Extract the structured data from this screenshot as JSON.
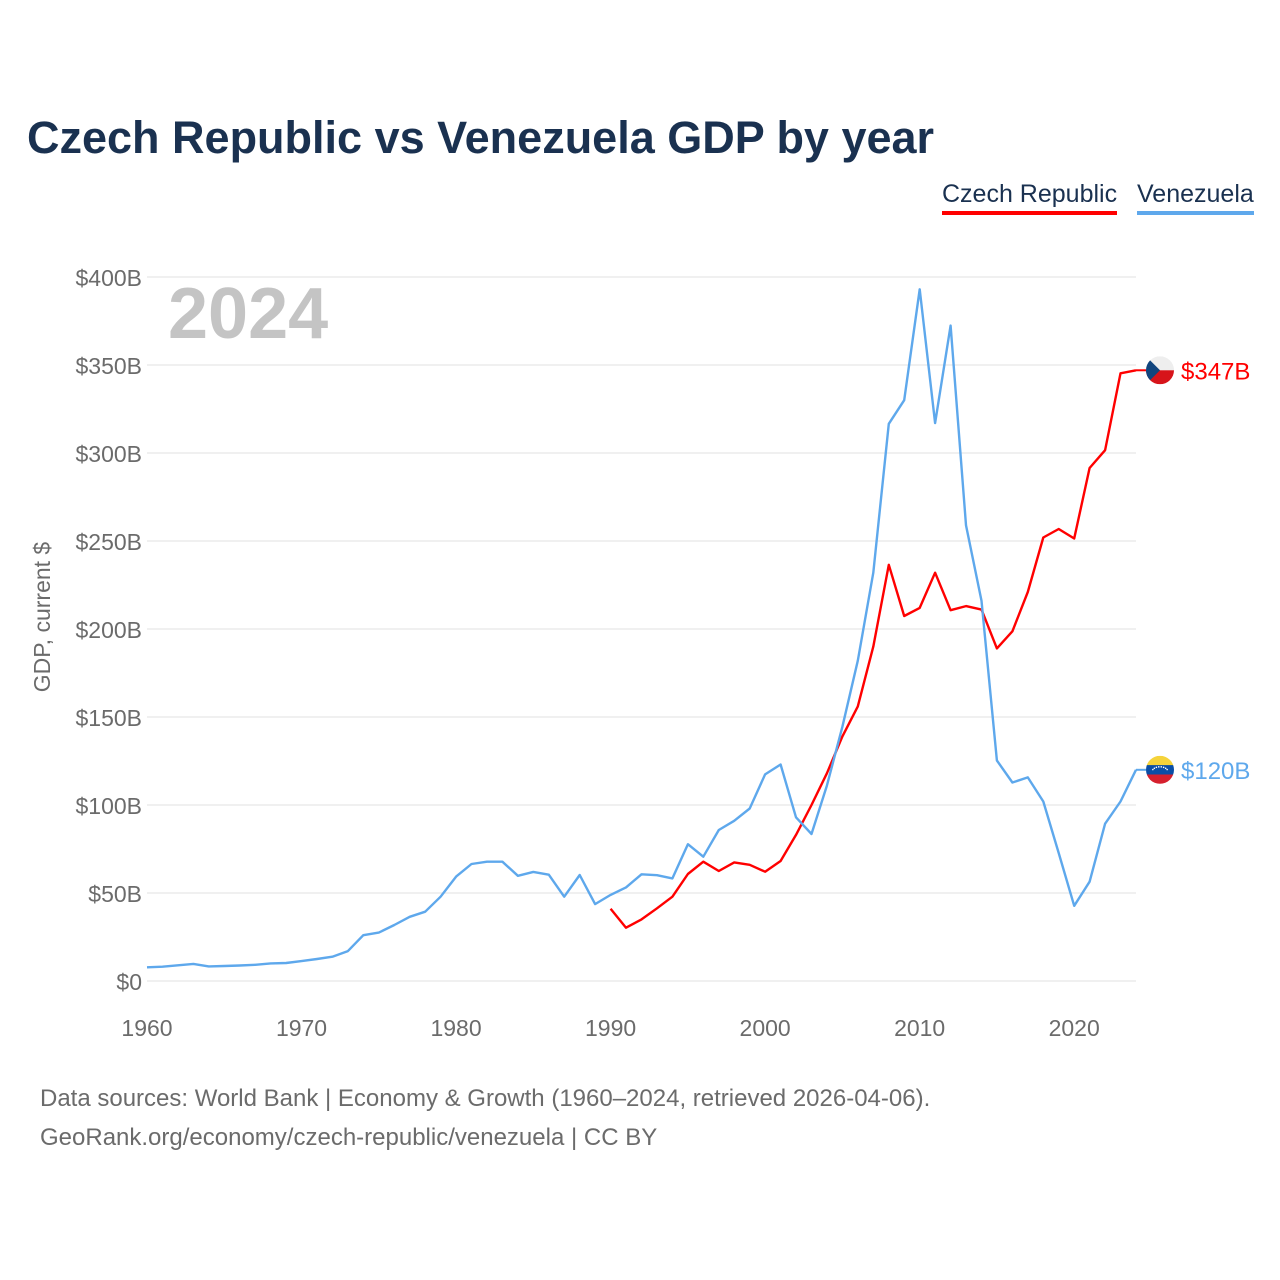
{
  "title": "Czech Republic vs Venezuela GDP by year",
  "legend": [
    {
      "label": "Czech Republic",
      "color": "#ff0000"
    },
    {
      "label": "Venezuela",
      "color": "#5ea8ec"
    }
  ],
  "footer": {
    "line1": "Data sources: World Bank | Economy & Growth (1960–2024, retrieved 2026-04-06).",
    "line2": "GeoRank.org/economy/czech-republic/venezuela | CC BY"
  },
  "chart_data": {
    "type": "line",
    "title": "Czech Republic vs Venezuela GDP by year",
    "xlabel": "",
    "ylabel": "GDP, current $",
    "year_watermark": "2024",
    "xlim": [
      1960,
      2024
    ],
    "ylim": [
      0,
      400
    ],
    "unit": "billion USD",
    "grid": true,
    "legend_position": "top-right",
    "x_ticks": [
      1960,
      1970,
      1980,
      1990,
      2000,
      2010,
      2020
    ],
    "x_tick_labels": [
      "1960",
      "1970",
      "1980",
      "1990",
      "2000",
      "2010",
      "2020"
    ],
    "y_ticks": [
      0,
      50,
      100,
      150,
      200,
      250,
      300,
      350,
      400
    ],
    "y_tick_labels": [
      "$0",
      "$50B",
      "$100B",
      "$150B",
      "$200B",
      "$250B",
      "$300B",
      "$350B",
      "$400B"
    ],
    "series": [
      {
        "name": "Czech Republic",
        "color": "#ff0000",
        "end_label": "$347B",
        "flag": "czech-flag",
        "x_start": 1990,
        "values": [
          41,
          30.3,
          35,
          41.3,
          47.9,
          60.8,
          67.8,
          62.5,
          67.4,
          66,
          62.1,
          68.2,
          83,
          100,
          118,
          139,
          156,
          190,
          236.5,
          207.4,
          212,
          232,
          210.7,
          213,
          211,
          189,
          198.7,
          221,
          252,
          256.8,
          251.4,
          291.5,
          301.6,
          345.3,
          347
        ]
      },
      {
        "name": "Venezuela",
        "color": "#5ea8ec",
        "end_label": "$120B",
        "flag": "venezuela-flag",
        "x_start": 1960,
        "values": [
          7.8,
          8.1,
          8.9,
          9.7,
          8.3,
          8.5,
          8.8,
          9.2,
          10,
          10.2,
          11.3,
          12.5,
          13.8,
          17,
          26,
          27.5,
          31.8,
          36.5,
          39.4,
          47.9,
          59.3,
          66.5,
          67.8,
          67.8,
          59.8,
          62,
          60.4,
          47.9,
          60.2,
          43.7,
          48.9,
          53.2,
          60.6,
          60.1,
          58.3,
          77.7,
          70.6,
          85.8,
          91,
          98,
          117.4,
          123,
          93,
          83.5,
          111,
          144.5,
          182,
          232,
          316.6,
          330,
          393,
          317,
          372.4,
          259,
          216,
          125.3,
          112.8,
          115.7,
          102,
          72.7,
          42.7,
          56.4,
          89.4,
          102,
          120
        ]
      }
    ]
  }
}
